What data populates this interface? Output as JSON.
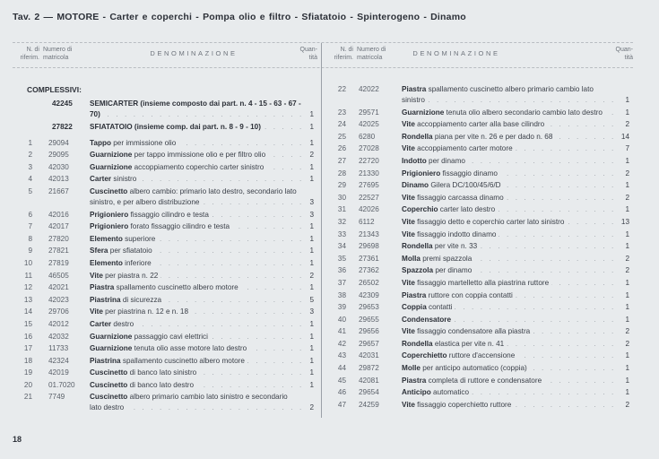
{
  "title": "Tav. 2 — MOTORE - Carter e coperchi - Pompa olio e filtro - Sfiatatoio - Spinterogeno - Dinamo",
  "header": {
    "ref_line1": "N. di",
    "ref_line2": "riferim.",
    "mat_line1": "Numero di",
    "mat_line2": "matricola",
    "denominazione": "DENOMINAZIONE",
    "qty_line1": "Quan-",
    "qty_line2": "tità"
  },
  "group_label": "COMPLESSIVI:",
  "assemblies": [
    {
      "ref": "",
      "mat": "42245",
      "name": "SEMICARTER",
      "desc": "(insieme composto dai part. n. 4 - 15 - 63 - 67 - 70)",
      "qty": "1"
    },
    {
      "ref": "",
      "mat": "27822",
      "name": "SFIATATOIO",
      "desc": "(insieme comp. dai part. n. 8 - 9 - 10)",
      "qty": "1"
    }
  ],
  "left_rows": [
    {
      "ref": "1",
      "mat": "29094",
      "name": "Tappo",
      "desc": "per immissione olio",
      "qty": "1"
    },
    {
      "ref": "2",
      "mat": "29095",
      "name": "Guarnizione",
      "desc": "per tappo immissione olio e per filtro olio",
      "qty": "2"
    },
    {
      "ref": "3",
      "mat": "42030",
      "name": "Guarnizione",
      "desc": "accoppiamento coperchio carter sinistro",
      "qty": "1"
    },
    {
      "ref": "4",
      "mat": "42013",
      "name": "Carter",
      "desc": "sinistro",
      "qty": "1"
    },
    {
      "ref": "5",
      "mat": "21667",
      "name": "Cuscinetto",
      "desc": "albero cambio: primario lato destro, secondario lato sinistro, e per albero distribuzione",
      "qty": "3"
    },
    {
      "ref": "6",
      "mat": "42016",
      "name": "Prigioniero",
      "desc": "fissaggio cilindro e testa",
      "qty": "3"
    },
    {
      "ref": "7",
      "mat": "42017",
      "name": "Prigioniero",
      "desc": "forato fissaggio cilindro e testa",
      "qty": "1"
    },
    {
      "ref": "8",
      "mat": "27820",
      "name": "Elemento",
      "desc": "superiore",
      "qty": "1"
    },
    {
      "ref": "9",
      "mat": "27821",
      "name": "Sfera",
      "desc": "per sfiatatoio",
      "qty": "1"
    },
    {
      "ref": "10",
      "mat": "27819",
      "name": "Elemento",
      "desc": "inferiore",
      "qty": "1"
    },
    {
      "ref": "11",
      "mat": "46505",
      "name": "Vite",
      "desc": "per piastra n. 22",
      "qty": "2"
    },
    {
      "ref": "12",
      "mat": "42021",
      "name": "Piastra",
      "desc": "spallamento cuscinetto albero motore",
      "qty": "1"
    },
    {
      "ref": "13",
      "mat": "42023",
      "name": "Piastrina",
      "desc": "di sicurezza",
      "qty": "5"
    },
    {
      "ref": "14",
      "mat": "29706",
      "name": "Vite",
      "desc": "per piastrina n. 12 e n. 18",
      "qty": "3"
    },
    {
      "ref": "15",
      "mat": "42012",
      "name": "Carter",
      "desc": "destro",
      "qty": "1"
    },
    {
      "ref": "16",
      "mat": "42032",
      "name": "Guarnizione",
      "desc": "passaggio cavi elettrici",
      "qty": "1"
    },
    {
      "ref": "17",
      "mat": "11733",
      "name": "Guarnizione",
      "desc": "tenuta olio asse motore lato destro",
      "qty": "1"
    },
    {
      "ref": "18",
      "mat": "42324",
      "name": "Piastrina",
      "desc": "spallamento cuscinetto albero motore",
      "qty": "1"
    },
    {
      "ref": "19",
      "mat": "42019",
      "name": "Cuscinetto",
      "desc": "di banco lato sinistro",
      "qty": "1"
    },
    {
      "ref": "20",
      "mat": "01.7020",
      "name": "Cuscinetto",
      "desc": "di banco lato destro",
      "qty": "1"
    },
    {
      "ref": "21",
      "mat": "7749",
      "name": "Cuscinetto",
      "desc": "albero primario cambio lato sinistro e secondario lato destro",
      "qty": "2"
    }
  ],
  "right_rows": [
    {
      "ref": "22",
      "mat": "42022",
      "name": "Piastra",
      "desc": "spallamento cuscinetto albero primario cambio lato sinistro",
      "qty": "1"
    },
    {
      "ref": "23",
      "mat": "29571",
      "name": "Guarnizione",
      "desc": "tenuta olio albero secondario cambio lato destro",
      "qty": "1"
    },
    {
      "ref": "24",
      "mat": "42025",
      "name": "Vite",
      "desc": "accoppiamento carter alla base cilindro",
      "qty": "2"
    },
    {
      "ref": "25",
      "mat": "6280",
      "name": "Rondella",
      "desc": "piana per vite n. 26 e per dado n. 68",
      "qty": "14"
    },
    {
      "ref": "26",
      "mat": "27028",
      "name": "Vite",
      "desc": "accoppiamento carter motore",
      "qty": "7"
    },
    {
      "ref": "27",
      "mat": "22720",
      "name": "Indotto",
      "desc": "per dinamo",
      "qty": "1"
    },
    {
      "ref": "28",
      "mat": "21330",
      "name": "Prigioniero",
      "desc": "fissaggio dinamo",
      "qty": "2"
    },
    {
      "ref": "29",
      "mat": "27695",
      "name": "Dinamo",
      "desc": "Gilera DC/100/45/6/D",
      "qty": "1"
    },
    {
      "ref": "30",
      "mat": "22527",
      "name": "Vite",
      "desc": "fissaggio carcassa dinamo",
      "qty": "2"
    },
    {
      "ref": "31",
      "mat": "42026",
      "name": "Coperchio",
      "desc": "carter lato destro",
      "qty": "1"
    },
    {
      "ref": "32",
      "mat": "6112",
      "name": "Vite",
      "desc": "fissaggio detto e coperchio carter lato sinistro",
      "qty": "13"
    },
    {
      "ref": "33",
      "mat": "21343",
      "name": "Vite",
      "desc": "fissaggio indotto dinamo",
      "qty": "1"
    },
    {
      "ref": "34",
      "mat": "29698",
      "name": "Rondella",
      "desc": "per vite n. 33",
      "qty": "1"
    },
    {
      "ref": "35",
      "mat": "27361",
      "name": "Molla",
      "desc": "premi spazzola",
      "qty": "2"
    },
    {
      "ref": "36",
      "mat": "27362",
      "name": "Spazzola",
      "desc": "per dinamo",
      "qty": "2"
    },
    {
      "ref": "37",
      "mat": "26502",
      "name": "Vite",
      "desc": "fissaggio martelletto alla piastrina ruttore",
      "qty": "1"
    },
    {
      "ref": "38",
      "mat": "42309",
      "name": "Piastra",
      "desc": "ruttore con coppia contatti",
      "qty": "1"
    },
    {
      "ref": "39",
      "mat": "29653",
      "name": "Coppia",
      "desc": "contatti",
      "qty": "1"
    },
    {
      "ref": "40",
      "mat": "29655",
      "name": "Condensatore",
      "desc": "",
      "qty": "1"
    },
    {
      "ref": "41",
      "mat": "29656",
      "name": "Vite",
      "desc": "fissaggio condensatore alla piastra",
      "qty": "2"
    },
    {
      "ref": "42",
      "mat": "29657",
      "name": "Rondella",
      "desc": "elastica per vite n. 41",
      "qty": "2"
    },
    {
      "ref": "43",
      "mat": "42031",
      "name": "Coperchietto",
      "desc": "ruttore d'accensione",
      "qty": "1"
    },
    {
      "ref": "44",
      "mat": "29872",
      "name": "Molle",
      "desc": "per anticipo automatico (coppia)",
      "qty": "1"
    },
    {
      "ref": "45",
      "mat": "42081",
      "name": "Piastra",
      "desc": "completa di ruttore e condensatore",
      "qty": "1"
    },
    {
      "ref": "46",
      "mat": "29654",
      "name": "Anticipo",
      "desc": "automatico",
      "qty": "1"
    },
    {
      "ref": "47",
      "mat": "24259",
      "name": "Vite",
      "desc": "fissaggio coperchietto ruttore",
      "qty": "2"
    }
  ],
  "page_number": "18"
}
